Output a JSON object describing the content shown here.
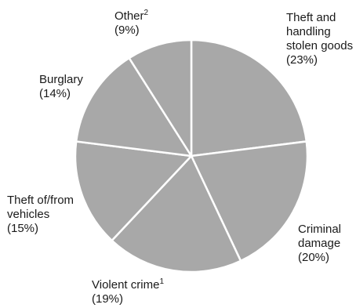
{
  "chart_data": {
    "type": "pie",
    "slice_fill": "#a8a8a8",
    "slice_stroke": "#ffffff",
    "slices": [
      {
        "lines": [
          "Theft and",
          "handling",
          "stolen goods"
        ],
        "value_label": "(23%)",
        "value": 23
      },
      {
        "lines": [
          "Criminal",
          "damage"
        ],
        "value_label": "(20%)",
        "value": 20
      },
      {
        "lines": [
          "Violent crime"
        ],
        "sup": "1",
        "value_label": "(19%)",
        "value": 19
      },
      {
        "lines": [
          "Theft of/from",
          "vehicles"
        ],
        "value_label": "(15%)",
        "value": 15
      },
      {
        "lines": [
          "Burglary"
        ],
        "value_label": "(14%)",
        "value": 14
      },
      {
        "lines": [
          "Other"
        ],
        "sup": "2",
        "value_label": "(9%)",
        "value": 9
      }
    ]
  }
}
